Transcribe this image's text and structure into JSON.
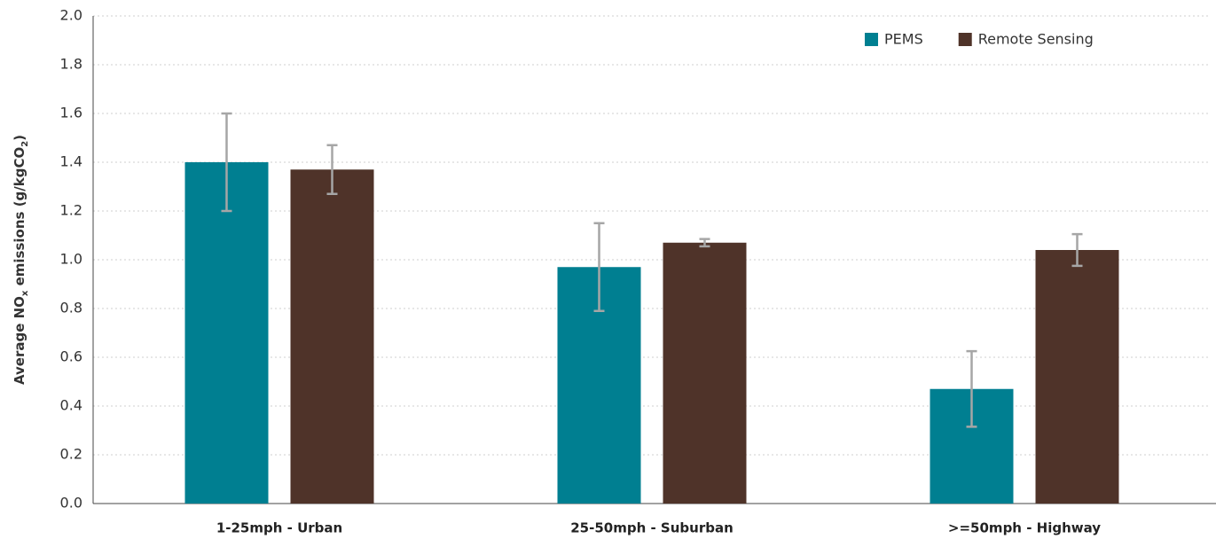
{
  "chart_data": {
    "type": "bar",
    "y_label": [
      "Average NO",
      "x",
      " emissions (g/kgCO",
      "2",
      ")"
    ],
    "categories": [
      "1-25mph - Urban",
      "25-50mph - Suburban",
      ">=50mph - Highway"
    ],
    "series": [
      {
        "name": "PEMS",
        "color": "#007f91",
        "values": [
          1.4,
          0.97,
          0.47
        ],
        "errors": [
          0.2,
          0.18,
          0.155
        ]
      },
      {
        "name": "Remote Sensing",
        "color": "#4f3329",
        "values": [
          1.37,
          1.07,
          1.04
        ],
        "errors": [
          0.1,
          0.015,
          0.065
        ]
      }
    ],
    "error_color": "#a6a6a6",
    "ylim": [
      0,
      2
    ],
    "yticks": [
      {
        "value": 0,
        "label": "0.0"
      },
      0.2,
      0.4,
      0.6,
      0.8,
      {
        "value": 1,
        "label": "1.0"
      },
      1.2,
      1.4,
      1.6,
      1.8,
      {
        "value": 2,
        "label": "2.0"
      }
    ],
    "grid": true,
    "legend": "upper right"
  }
}
